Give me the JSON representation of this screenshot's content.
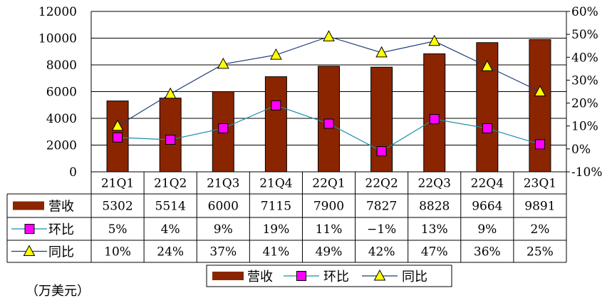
{
  "chart_data": {
    "type": "bar",
    "categories": [
      "21Q1",
      "21Q2",
      "21Q3",
      "21Q4",
      "22Q1",
      "22Q2",
      "22Q3",
      "22Q4",
      "23Q1"
    ],
    "series": [
      {
        "name": "营收",
        "type": "bar",
        "axis": "left",
        "values": [
          5302,
          5514,
          6000,
          7115,
          7900,
          7827,
          8828,
          9664,
          9891
        ],
        "labels": [
          "5302",
          "5514",
          "6000",
          "7115",
          "7900",
          "7827",
          "8828",
          "9664",
          "9891"
        ],
        "color": "#8B2500"
      },
      {
        "name": "环比",
        "type": "line",
        "axis": "right",
        "marker": "square",
        "values": [
          5,
          4,
          9,
          19,
          11,
          -1,
          13,
          9,
          2
        ],
        "labels": [
          "5%",
          "4%",
          "9%",
          "19%",
          "11%",
          "−1%",
          "13%",
          "9%",
          "2%"
        ],
        "color": "#FF00FF",
        "line_color": "#1A8FA8"
      },
      {
        "name": "同比",
        "type": "line",
        "axis": "right",
        "marker": "triangle",
        "values": [
          10,
          24,
          37,
          41,
          49,
          42,
          47,
          36,
          25
        ],
        "labels": [
          "10%",
          "24%",
          "37%",
          "41%",
          "49%",
          "42%",
          "47%",
          "36%",
          "25%"
        ],
        "color": "#FFFF00",
        "line_color": "#1F3D7A"
      }
    ],
    "ylim_left": [
      0,
      12000
    ],
    "yticks_left": [
      "0",
      "2000",
      "4000",
      "6000",
      "8000",
      "10000",
      "12000"
    ],
    "ylim_right": [
      -10,
      60
    ],
    "yticks_right": [
      "-10%",
      "0%",
      "10%",
      "20%",
      "30%",
      "40%",
      "50%",
      "60%"
    ],
    "legend_position": "bottom",
    "data_table": true,
    "grid": true
  },
  "unit_note": "（万美元）"
}
